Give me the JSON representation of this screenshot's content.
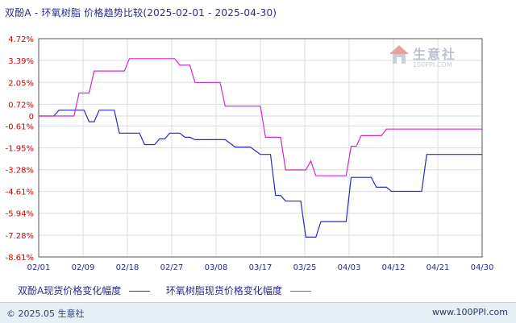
{
  "title": "双酚A - 环氧树脂 价格趋势比较(2025-02-01 - 2025-04-30)",
  "watermark": {
    "text": "生意社",
    "url": "100PPI.COM"
  },
  "footer": {
    "copyright": "© 2025.05 生意社",
    "site": "www.100PPI.com"
  },
  "colors": {
    "series_a": "#2828c8",
    "series_b": "#d428c8",
    "axis": "#555555",
    "grid": "#dddddd"
  },
  "chart_data": {
    "type": "line",
    "x_ticks": [
      "02/01",
      "02/09",
      "02/18",
      "02/27",
      "03/08",
      "03/17",
      "03/25",
      "04/03",
      "04/12",
      "04/21",
      "04/30"
    ],
    "y_ticks": [
      "4.72%",
      "3.39%",
      "2.05%",
      "0.72%",
      "0",
      "-0.61%",
      "-1.95%",
      "-3.28%",
      "-4.61%",
      "-5.94%",
      "-7.28%",
      "-8.61%"
    ],
    "ylim": [
      -8.61,
      4.72
    ],
    "grid": true,
    "legend_position": "bottom",
    "series": [
      {
        "name": "双酚A现货价格变化幅度",
        "color": "#2828c8",
        "points": [
          [
            "2025-02-01",
            0
          ],
          [
            "2025-02-04",
            0
          ],
          [
            "2025-02-05",
            0.35
          ],
          [
            "2025-02-10",
            0.35
          ],
          [
            "2025-02-11",
            -0.35
          ],
          [
            "2025-02-12",
            -0.35
          ],
          [
            "2025-02-13",
            0.35
          ],
          [
            "2025-02-16",
            0.35
          ],
          [
            "2025-02-17",
            -1.05
          ],
          [
            "2025-02-21",
            -1.05
          ],
          [
            "2025-02-22",
            -1.75
          ],
          [
            "2025-02-24",
            -1.75
          ],
          [
            "2025-02-25",
            -1.4
          ],
          [
            "2025-02-26",
            -1.4
          ],
          [
            "2025-02-27",
            -1.05
          ],
          [
            "2025-03-01",
            -1.05
          ],
          [
            "2025-03-02",
            -1.3
          ],
          [
            "2025-03-03",
            -1.3
          ],
          [
            "2025-03-04",
            -1.45
          ],
          [
            "2025-03-10",
            -1.45
          ],
          [
            "2025-03-12",
            -1.9
          ],
          [
            "2025-03-15",
            -1.9
          ],
          [
            "2025-03-17",
            -2.35
          ],
          [
            "2025-03-19",
            -2.35
          ],
          [
            "2025-03-20",
            -4.85
          ],
          [
            "2025-03-21",
            -4.85
          ],
          [
            "2025-03-22",
            -5.2
          ],
          [
            "2025-03-25",
            -5.2
          ],
          [
            "2025-03-26",
            -7.4
          ],
          [
            "2025-03-28",
            -7.4
          ],
          [
            "2025-03-29",
            -6.45
          ],
          [
            "2025-04-03",
            -6.45
          ],
          [
            "2025-04-04",
            -3.75
          ],
          [
            "2025-04-08",
            -3.75
          ],
          [
            "2025-04-09",
            -4.35
          ],
          [
            "2025-04-11",
            -4.35
          ],
          [
            "2025-04-12",
            -4.6
          ],
          [
            "2025-04-18",
            -4.6
          ],
          [
            "2025-04-19",
            -2.35
          ],
          [
            "2025-04-24",
            -2.35
          ],
          [
            "2025-04-30",
            -2.35
          ]
        ]
      },
      {
        "name": "环氧树脂现货价格变化幅度",
        "color": "#d428c8",
        "points": [
          [
            "2025-02-01",
            0
          ],
          [
            "2025-02-08",
            0
          ],
          [
            "2025-02-09",
            1.4
          ],
          [
            "2025-02-11",
            1.4
          ],
          [
            "2025-02-12",
            2.75
          ],
          [
            "2025-02-18",
            2.75
          ],
          [
            "2025-02-19",
            3.5
          ],
          [
            "2025-02-28",
            3.5
          ],
          [
            "2025-03-01",
            3.1
          ],
          [
            "2025-03-03",
            3.1
          ],
          [
            "2025-03-04",
            2.05
          ],
          [
            "2025-03-09",
            2.05
          ],
          [
            "2025-03-10",
            0.6
          ],
          [
            "2025-03-17",
            0.6
          ],
          [
            "2025-03-18",
            -1.3
          ],
          [
            "2025-03-21",
            -1.3
          ],
          [
            "2025-03-22",
            -3.3
          ],
          [
            "2025-03-26",
            -3.3
          ],
          [
            "2025-03-27",
            -2.75
          ],
          [
            "2025-03-28",
            -3.65
          ],
          [
            "2025-04-03",
            -3.65
          ],
          [
            "2025-04-04",
            -1.85
          ],
          [
            "2025-04-05",
            -1.85
          ],
          [
            "2025-04-06",
            -1.2
          ],
          [
            "2025-04-10",
            -1.2
          ],
          [
            "2025-04-11",
            -0.8
          ],
          [
            "2025-04-30",
            -0.8
          ]
        ]
      }
    ]
  }
}
